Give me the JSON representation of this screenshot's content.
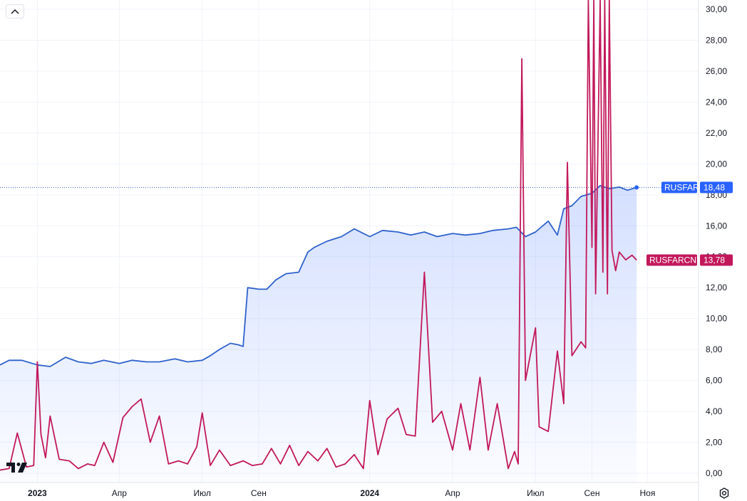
{
  "colors": {
    "rusfar": "#2962ff",
    "rusfar_line": "#2f62cc",
    "rusfarcny": "#c2185b",
    "grid": "#f0f3fa",
    "axis_text": "#131722"
  },
  "icons": {
    "collapse": "chevron-up-icon",
    "settings": "gear-icon",
    "logo": "tradingview-logo-icon"
  },
  "chart_data": {
    "type": "line",
    "title": "",
    "xlabel": "",
    "ylabel": "",
    "y_axis_position": "right",
    "ylim": [
      -0.6,
      30.6
    ],
    "yticks": [
      "0,00",
      "2,00",
      "4,00",
      "6,00",
      "8,00",
      "10,00",
      "12,00",
      "14,00",
      "16,00",
      "18,00",
      "20,00",
      "22,00",
      "24,00",
      "26,00",
      "28,00",
      "30,00"
    ],
    "ytick_values": [
      0,
      2,
      4,
      6,
      8,
      10,
      12,
      14,
      16,
      18,
      20,
      22,
      24,
      26,
      28,
      30
    ],
    "xlim": [
      "2022-11-21",
      "2024-12-27"
    ],
    "xticks": [
      {
        "date": "2023-01-01",
        "label": "2023",
        "year": true
      },
      {
        "date": "2023-04-01",
        "label": "Апр",
        "year": false
      },
      {
        "date": "2023-07-01",
        "label": "Июл",
        "year": false
      },
      {
        "date": "2023-09-01",
        "label": "Сен",
        "year": false
      },
      {
        "date": "2024-01-01",
        "label": "2024",
        "year": true
      },
      {
        "date": "2024-04-01",
        "label": "Апр",
        "year": false
      },
      {
        "date": "2024-07-01",
        "label": "Июл",
        "year": false
      },
      {
        "date": "2024-09-01",
        "label": "Сен",
        "year": false
      },
      {
        "date": "2024-11-01",
        "label": "Ноя",
        "year": false
      }
    ],
    "grid": true,
    "series": [
      {
        "name": "RUSFAR",
        "last_value": "18,48",
        "style": "area",
        "x": [
          "2022-11-21",
          "2022-12-01",
          "2022-12-15",
          "2023-01-01",
          "2023-01-15",
          "2023-02-01",
          "2023-02-15",
          "2023-03-01",
          "2023-03-15",
          "2023-04-01",
          "2023-04-15",
          "2023-05-01",
          "2023-05-15",
          "2023-06-01",
          "2023-06-15",
          "2023-07-01",
          "2023-07-10",
          "2023-07-20",
          "2023-08-01",
          "2023-08-10",
          "2023-08-15",
          "2023-08-20",
          "2023-09-01",
          "2023-09-10",
          "2023-09-20",
          "2023-10-01",
          "2023-10-15",
          "2023-10-25",
          "2023-11-01",
          "2023-11-15",
          "2023-12-01",
          "2023-12-15",
          "2024-01-01",
          "2024-01-15",
          "2024-02-01",
          "2024-02-15",
          "2024-03-01",
          "2024-03-15",
          "2024-04-01",
          "2024-04-15",
          "2024-05-01",
          "2024-05-15",
          "2024-06-01",
          "2024-06-10",
          "2024-06-20",
          "2024-07-01",
          "2024-07-15",
          "2024-07-25",
          "2024-08-01",
          "2024-08-10",
          "2024-08-20",
          "2024-09-01",
          "2024-09-10",
          "2024-09-20",
          "2024-10-01",
          "2024-10-10",
          "2024-10-20"
        ],
        "y": [
          7.0,
          7.3,
          7.3,
          7.0,
          6.9,
          7.5,
          7.2,
          7.1,
          7.3,
          7.1,
          7.3,
          7.2,
          7.2,
          7.4,
          7.2,
          7.3,
          7.6,
          8.0,
          8.4,
          8.3,
          8.2,
          12.0,
          11.9,
          11.9,
          12.5,
          12.9,
          13.0,
          14.3,
          14.6,
          15.0,
          15.3,
          15.8,
          15.3,
          15.7,
          15.6,
          15.4,
          15.6,
          15.3,
          15.5,
          15.4,
          15.5,
          15.7,
          15.8,
          15.9,
          15.3,
          15.6,
          16.3,
          15.4,
          17.1,
          17.3,
          17.9,
          18.1,
          18.6,
          18.4,
          18.5,
          18.3,
          18.48
        ]
      },
      {
        "name": "RUSFARCNY",
        "last_value": "13,78",
        "style": "line",
        "x": [
          "2022-11-21",
          "2022-12-01",
          "2022-12-10",
          "2022-12-20",
          "2022-12-28",
          "2023-01-01",
          "2023-01-05",
          "2023-01-10",
          "2023-01-15",
          "2023-01-25",
          "2023-02-05",
          "2023-02-15",
          "2023-02-25",
          "2023-03-05",
          "2023-03-15",
          "2023-03-25",
          "2023-04-05",
          "2023-04-15",
          "2023-04-25",
          "2023-05-05",
          "2023-05-15",
          "2023-05-25",
          "2023-06-05",
          "2023-06-15",
          "2023-06-25",
          "2023-07-01",
          "2023-07-10",
          "2023-07-20",
          "2023-08-01",
          "2023-08-15",
          "2023-08-25",
          "2023-09-05",
          "2023-09-15",
          "2023-09-25",
          "2023-10-05",
          "2023-10-15",
          "2023-10-25",
          "2023-11-05",
          "2023-11-15",
          "2023-11-25",
          "2023-12-05",
          "2023-12-15",
          "2023-12-25",
          "2024-01-01",
          "2024-01-10",
          "2024-01-20",
          "2024-02-01",
          "2024-02-10",
          "2024-02-20",
          "2024-03-01",
          "2024-03-10",
          "2024-03-20",
          "2024-04-01",
          "2024-04-10",
          "2024-04-20",
          "2024-05-01",
          "2024-05-10",
          "2024-05-20",
          "2024-06-01",
          "2024-06-08",
          "2024-06-12",
          "2024-06-16",
          "2024-06-20",
          "2024-07-01",
          "2024-07-05",
          "2024-07-15",
          "2024-07-25",
          "2024-08-01",
          "2024-08-05",
          "2024-08-10",
          "2024-08-20",
          "2024-08-25",
          "2024-08-28",
          "2024-09-01",
          "2024-09-03",
          "2024-09-05",
          "2024-09-10",
          "2024-09-13",
          "2024-09-15",
          "2024-09-18",
          "2024-09-20",
          "2024-09-23",
          "2024-09-27",
          "2024-10-01",
          "2024-10-08",
          "2024-10-15",
          "2024-10-20"
        ],
        "y": [
          0.2,
          0.3,
          2.6,
          0.4,
          0.5,
          7.2,
          2.5,
          1.0,
          3.7,
          0.9,
          0.8,
          0.3,
          0.6,
          0.5,
          2.0,
          0.7,
          3.6,
          4.3,
          4.8,
          2.0,
          3.7,
          0.6,
          0.8,
          0.6,
          1.7,
          3.9,
          0.5,
          1.5,
          0.5,
          0.8,
          0.5,
          0.6,
          1.6,
          0.6,
          1.8,
          0.5,
          1.4,
          0.8,
          1.6,
          0.4,
          0.6,
          1.2,
          0.3,
          4.7,
          1.2,
          3.5,
          4.2,
          2.5,
          2.4,
          13.0,
          3.3,
          4.0,
          1.5,
          4.5,
          1.5,
          6.2,
          1.5,
          4.5,
          0.3,
          1.4,
          0.6,
          26.8,
          6.0,
          9.4,
          3.0,
          2.7,
          7.9,
          4.5,
          20.1,
          7.6,
          8.5,
          8.1,
          30.6,
          14.6,
          30.6,
          11.6,
          30.6,
          13.0,
          30.6,
          11.6,
          30.6,
          14.4,
          13.1,
          14.3,
          13.8,
          14.1,
          13.78
        ]
      }
    ]
  }
}
